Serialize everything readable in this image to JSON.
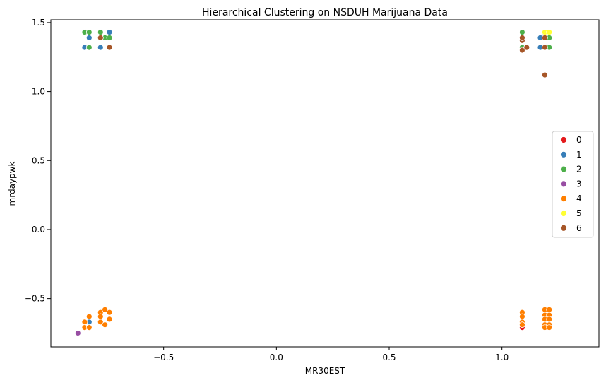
{
  "chart_data": {
    "type": "scatter",
    "title": "Hierarchical Clustering on NSDUH Marijuana Data",
    "xlabel": "MR30EST",
    "ylabel": "mrdaypwk",
    "xlim": [
      -1.0,
      1.43
    ],
    "ylim": [
      -0.85,
      1.52
    ],
    "xticks": [
      -0.5,
      0.0,
      0.5,
      1.0
    ],
    "xtick_labels": [
      "−0.5",
      "0.0",
      "0.5",
      "1.0"
    ],
    "yticks": [
      -0.5,
      0.0,
      0.5,
      1.0,
      1.5
    ],
    "ytick_labels": [
      "−0.5",
      "0.0",
      "0.5",
      "1.0",
      "1.5"
    ],
    "grid": false,
    "legend_position": "center-right",
    "series": [
      {
        "name": "0",
        "color": "#e41a1c",
        "points": [
          [
            1.09,
            -0.71
          ],
          [
            1.19,
            -0.65
          ]
        ]
      },
      {
        "name": "1",
        "color": "#377eb8",
        "points": [
          [
            -0.85,
            1.32
          ],
          [
            -0.83,
            1.39
          ],
          [
            -0.78,
            1.32
          ],
          [
            -0.74,
            1.43
          ],
          [
            -0.83,
            -0.67
          ],
          [
            1.17,
            1.39
          ],
          [
            1.17,
            1.32
          ],
          [
            1.19,
            1.41
          ]
        ]
      },
      {
        "name": "2",
        "color": "#4daf4a",
        "points": [
          [
            -0.85,
            1.43
          ],
          [
            -0.83,
            1.43
          ],
          [
            -0.83,
            1.32
          ],
          [
            -0.78,
            1.43
          ],
          [
            -0.76,
            1.39
          ],
          [
            -0.74,
            1.39
          ],
          [
            1.09,
            1.43
          ],
          [
            1.09,
            1.32
          ],
          [
            1.21,
            1.39
          ],
          [
            1.21,
            1.32
          ]
        ]
      },
      {
        "name": "3",
        "color": "#984ea3",
        "points": [
          [
            -0.88,
            -0.75
          ]
        ]
      },
      {
        "name": "4",
        "color": "#ff7f00",
        "points": [
          [
            -0.85,
            -0.67
          ],
          [
            -0.85,
            -0.71
          ],
          [
            -0.83,
            -0.71
          ],
          [
            -0.83,
            -0.63
          ],
          [
            -0.78,
            -0.67
          ],
          [
            -0.78,
            -0.6
          ],
          [
            -0.78,
            -0.63
          ],
          [
            -0.76,
            -0.58
          ],
          [
            -0.76,
            -0.69
          ],
          [
            -0.74,
            -0.6
          ],
          [
            -0.74,
            -0.65
          ],
          [
            1.09,
            -0.6
          ],
          [
            1.09,
            -0.63
          ],
          [
            1.09,
            -0.67
          ],
          [
            1.09,
            -0.69
          ],
          [
            1.19,
            -0.58
          ],
          [
            1.19,
            -0.62
          ],
          [
            1.19,
            -0.65
          ],
          [
            1.19,
            -0.69
          ],
          [
            1.19,
            -0.71
          ],
          [
            1.21,
            -0.58
          ],
          [
            1.21,
            -0.62
          ],
          [
            1.21,
            -0.65
          ],
          [
            1.21,
            -0.69
          ],
          [
            1.21,
            -0.71
          ]
        ]
      },
      {
        "name": "5",
        "color": "#ffff33",
        "points": [
          [
            1.19,
            1.43
          ],
          [
            1.21,
            1.43
          ]
        ]
      },
      {
        "name": "6",
        "color": "#a65628",
        "points": [
          [
            -0.78,
            1.39
          ],
          [
            -0.74,
            1.32
          ],
          [
            1.09,
            1.3
          ],
          [
            1.09,
            1.37
          ],
          [
            1.09,
            1.39
          ],
          [
            1.11,
            1.32
          ],
          [
            1.19,
            1.32
          ],
          [
            1.19,
            1.39
          ],
          [
            1.19,
            1.12
          ]
        ]
      }
    ]
  }
}
